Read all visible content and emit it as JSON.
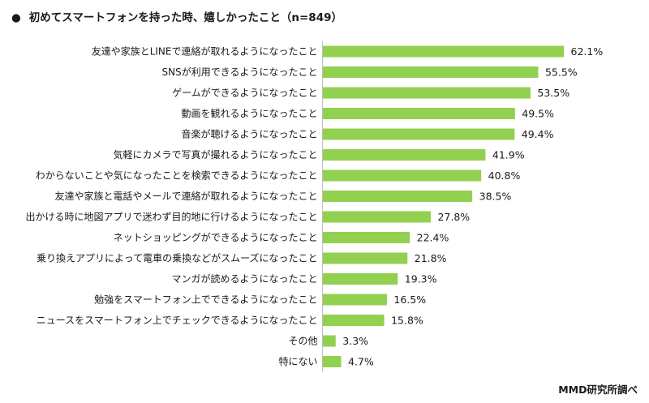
{
  "title": "初めてスマートフォンを持った時、嬉しかったこと（n=849）",
  "bullet": "●",
  "source": "MMD研究所調べ",
  "chart_data": {
    "type": "bar",
    "orientation": "horizontal",
    "title": "初めてスマートフォンを持った時、嬉しかったこと（n=849）",
    "bar_color": "#92d050",
    "value_suffix": "%",
    "categories": [
      "友達や家族とLINEで連絡が取れるようになったこと",
      "SNSが利用できるようになったこと",
      "ゲームができるようになったこと",
      "動画を観れるようになったこと",
      "音楽が聴けるようになったこと",
      "気軽にカメラで写真が撮れるようになったこと",
      "わからないことや気になったことを検索できるようになったこと",
      "友達や家族と電話やメールで連絡が取れるようになったこと",
      "出かける時に地図アプリで迷わず目的地に行けるようになったこと",
      "ネットショッピングができるようになったこと",
      "乗り換えアプリによって電車の乗換などがスムーズになったこと",
      "マンガが読めるようになったこと",
      "勉強をスマートフォン上でできるようになったこと",
      "ニュースをスマートフォン上でチェックできるようになったこと",
      "その他",
      "特にない"
    ],
    "values": [
      62.1,
      55.5,
      53.5,
      49.5,
      49.4,
      41.9,
      40.8,
      38.5,
      27.8,
      22.4,
      21.8,
      19.3,
      16.5,
      15.8,
      3.3,
      4.7
    ],
    "labels": [
      "62.1%",
      "55.5%",
      "53.5%",
      "49.5%",
      "49.4%",
      "41.9%",
      "40.8%",
      "38.5%",
      "27.8%",
      "22.4%",
      "21.8%",
      "19.3%",
      "16.5%",
      "15.8%",
      "3.3%",
      "4.7%"
    ],
    "xlim": [
      0,
      100
    ]
  }
}
